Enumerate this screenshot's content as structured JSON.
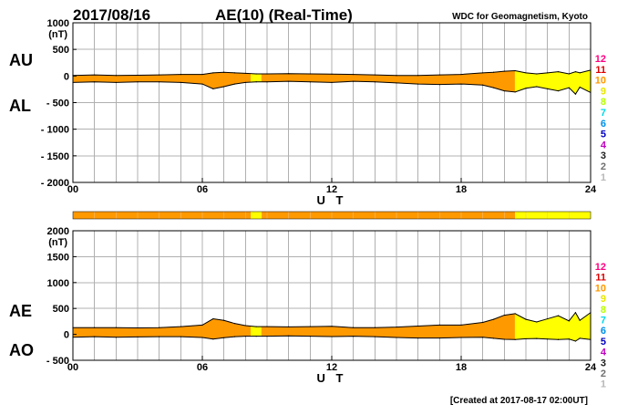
{
  "header": {
    "date": "2017/08/16",
    "title": "AE(10) (Real-Time)",
    "institution": "WDC for Geomagnetism, Kyoto"
  },
  "footer": {
    "created": "[Created at 2017-08-17 02:00UT]"
  },
  "stations_legend": {
    "labels": [
      "12",
      "11",
      "10",
      "9",
      "8",
      "7",
      "6",
      "5",
      "4",
      "3",
      "2",
      "1"
    ],
    "colors": [
      "#ff0080",
      "#e00000",
      "#ff9900",
      "#e8e800",
      "#b8ff00",
      "#00d8e8",
      "#0090e8",
      "#0000c0",
      "#c000c0",
      "#202020",
      "#707070",
      "#b8b8b8"
    ]
  },
  "colors": {
    "orange_fill": "#ff9900",
    "yellow_fill": "#ffff00",
    "grid": "#b0b0b0"
  },
  "chart_data": [
    {
      "type": "area",
      "panel": "AU/AL",
      "upper_label": "AU",
      "lower_label": "AL",
      "ylabel_unit": "(nT)",
      "xlabel": "U T",
      "xlim": [
        0,
        24
      ],
      "ylim": [
        -2000,
        1000
      ],
      "x_ticks": [
        "00",
        "06",
        "12",
        "18",
        "24"
      ],
      "y_ticks": [
        "1000",
        "500",
        "0",
        "- 500",
        "- 1000",
        "- 1500",
        "- 2000"
      ],
      "grid": true,
      "x_hours": [
        0,
        1,
        2,
        3,
        4,
        5,
        6,
        6.5,
        7,
        7.5,
        8,
        8.5,
        9,
        10,
        11,
        12,
        13,
        14,
        15,
        16,
        17,
        18,
        19,
        19.5,
        20,
        20.5,
        21,
        21.5,
        22,
        22.5,
        23,
        23.3,
        23.5,
        24
      ],
      "au": [
        10,
        20,
        10,
        15,
        20,
        30,
        30,
        60,
        70,
        60,
        50,
        40,
        40,
        45,
        40,
        35,
        30,
        20,
        10,
        10,
        20,
        30,
        60,
        70,
        90,
        100,
        60,
        40,
        60,
        80,
        40,
        80,
        60,
        110
      ],
      "al": [
        -120,
        -110,
        -120,
        -110,
        -110,
        -120,
        -150,
        -240,
        -200,
        -150,
        -120,
        -110,
        -110,
        -100,
        -110,
        -120,
        -100,
        -110,
        -130,
        -150,
        -160,
        -150,
        -170,
        -220,
        -280,
        -300,
        -230,
        -200,
        -240,
        -280,
        -220,
        -340,
        -210,
        -310
      ],
      "station_count_segments": [
        {
          "from": 0,
          "to": 8.25,
          "stations": 10
        },
        {
          "from": 8.25,
          "to": 8.75,
          "stations": 9
        },
        {
          "from": 8.75,
          "to": 20.5,
          "stations": 10
        },
        {
          "from": 20.5,
          "to": 24,
          "stations": 9
        }
      ]
    },
    {
      "type": "area",
      "panel": "AE/AO",
      "upper_label": "AE",
      "lower_label": "AO",
      "ylabel_unit": "(nT)",
      "xlabel": "U T",
      "xlim": [
        0,
        24
      ],
      "ylim": [
        -500,
        2000
      ],
      "x_ticks": [
        "00",
        "06",
        "12",
        "18",
        "24"
      ],
      "y_ticks": [
        "2000",
        "1500",
        "1000",
        "500",
        "0",
        "- 500"
      ],
      "grid": true,
      "x_hours": [
        0,
        1,
        2,
        3,
        4,
        5,
        6,
        6.5,
        7,
        7.5,
        8,
        8.5,
        9,
        10,
        11,
        12,
        13,
        14,
        15,
        16,
        17,
        18,
        19,
        19.5,
        20,
        20.5,
        21,
        21.5,
        22,
        22.5,
        23,
        23.3,
        23.5,
        24
      ],
      "ae": [
        130,
        130,
        130,
        125,
        130,
        150,
        180,
        300,
        270,
        210,
        170,
        150,
        150,
        145,
        150,
        155,
        130,
        130,
        140,
        160,
        180,
        180,
        230,
        290,
        370,
        400,
        290,
        240,
        300,
        360,
        260,
        420,
        270,
        420
      ],
      "ao": [
        -55,
        -45,
        -55,
        -48,
        -45,
        -45,
        -60,
        -90,
        -65,
        -45,
        -35,
        -35,
        -35,
        -28,
        -35,
        -43,
        -35,
        -45,
        -60,
        -70,
        -70,
        -60,
        -55,
        -75,
        -95,
        -100,
        -85,
        -80,
        -90,
        -100,
        -90,
        -130,
        -75,
        -100
      ],
      "station_count_segments": [
        {
          "from": 0,
          "to": 8.25,
          "stations": 10
        },
        {
          "from": 8.25,
          "to": 8.75,
          "stations": 9
        },
        {
          "from": 8.75,
          "to": 20.5,
          "stations": 10
        },
        {
          "from": 20.5,
          "to": 24,
          "stations": 9
        }
      ]
    }
  ]
}
